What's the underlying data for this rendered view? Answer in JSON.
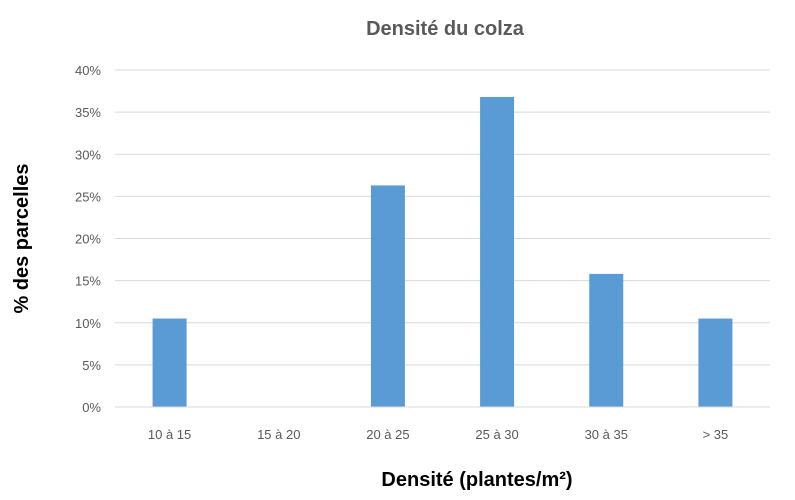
{
  "chart_data": {
    "type": "bar",
    "title": "Densité du colza",
    "xlabel": "Densité (plantes/m²)",
    "ylabel": "% des parcelles",
    "categories": [
      "10 à 15",
      "15 à 20",
      "20 à 25",
      "25 à 30",
      "30 à 35",
      "> 35"
    ],
    "values": [
      10.5,
      0,
      26.3,
      36.8,
      15.8,
      10.5
    ],
    "yticks": [
      "0%",
      "5%",
      "10%",
      "15%",
      "20%",
      "25%",
      "30%",
      "35%",
      "40%"
    ],
    "ylim": [
      0,
      40
    ],
    "grid": true,
    "legend": "none",
    "bar_color": "#5B9BD5",
    "grid_color": "#D9D9D9",
    "text_color": "#595959"
  }
}
